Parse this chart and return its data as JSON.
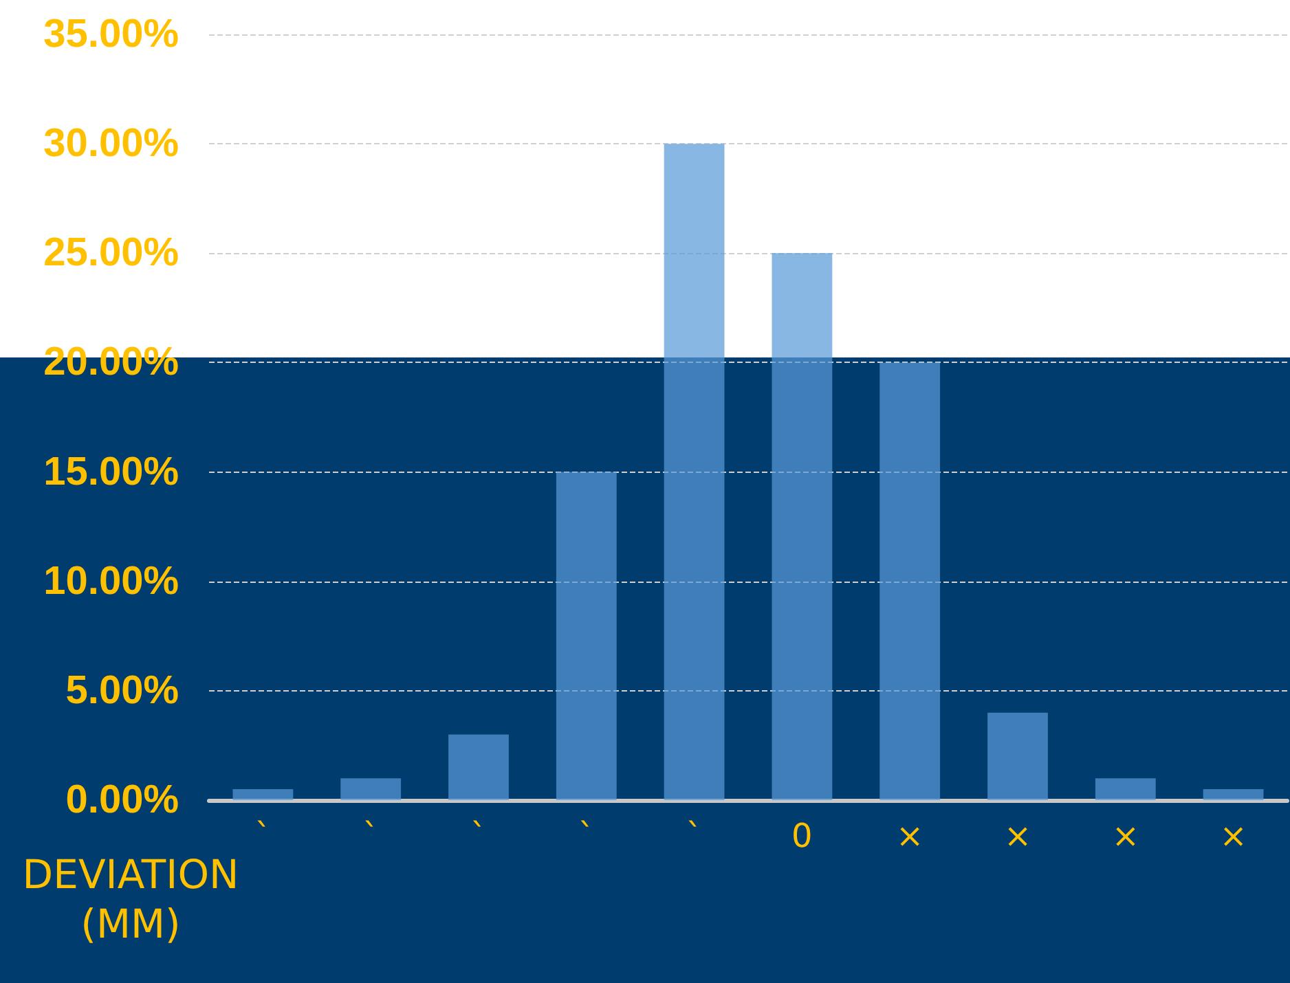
{
  "chart_data": {
    "type": "bar",
    "xlabel": "DEVIATION (MM)",
    "categories": [
      "ˋ",
      "ˋ",
      "ˋ",
      "ˋ",
      "ˋ",
      "0",
      "×",
      "×",
      "×",
      "×"
    ],
    "values": [
      0.5,
      1,
      3,
      15,
      30,
      25,
      20,
      4,
      1,
      0.5
    ],
    "color": "#5999d7",
    "ylim": [
      0,
      35
    ],
    "yticks": [
      {
        "value": 0,
        "label": "0.00%"
      },
      {
        "value": 5,
        "label": "5.00%"
      },
      {
        "value": 10,
        "label": "10.00%"
      },
      {
        "value": 15,
        "label": "15.00%"
      },
      {
        "value": 20,
        "label": "20.00%"
      },
      {
        "value": 25,
        "label": "25.00%"
      },
      {
        "value": 30,
        "label": "30.00%"
      },
      {
        "value": 35,
        "label": "35.00%"
      }
    ],
    "grid": "y"
  }
}
